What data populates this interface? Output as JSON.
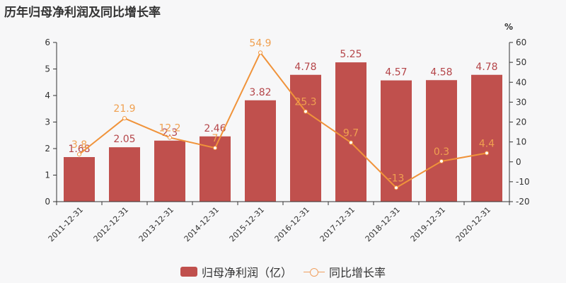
{
  "title": "历年归母净利润及同比增长率",
  "legend": {
    "bar_label": "归母净利润（亿）",
    "line_label": "同比增长率"
  },
  "colors": {
    "bar": "#c0504d",
    "bar_label": "#b5464a",
    "line": "#f0933a",
    "line_label": "#f0a050"
  },
  "chart_data": {
    "type": "bar",
    "title": "历年归母净利润及同比增长率",
    "categories": [
      "2011-12-31",
      "2012-12-31",
      "2013-12-31",
      "2014-12-31",
      "2015-12-31",
      "2016-12-31",
      "2017-12-31",
      "2018-12-31",
      "2019-12-31",
      "2020-12-31"
    ],
    "series": [
      {
        "name": "归母净利润（亿）",
        "type": "bar",
        "axis": "left",
        "values": [
          1.68,
          2.05,
          2.3,
          2.46,
          3.82,
          4.78,
          5.25,
          4.57,
          4.58,
          4.78
        ]
      },
      {
        "name": "同比增长率",
        "type": "line",
        "axis": "right",
        "values": [
          3.8,
          21.9,
          12.2,
          7,
          54.9,
          25.3,
          9.7,
          -13,
          0.3,
          4.4
        ]
      }
    ],
    "left_axis": {
      "label": "",
      "ylim": [
        0,
        6
      ],
      "ticks": [
        0,
        1,
        2,
        3,
        4,
        5,
        6
      ]
    },
    "right_axis": {
      "label": "%",
      "ylim": [
        -20,
        60
      ],
      "ticks": [
        -20,
        -10,
        0,
        10,
        20,
        30,
        40,
        50,
        60
      ]
    },
    "xlabel": "",
    "grid": false,
    "legend_position": "bottom"
  }
}
